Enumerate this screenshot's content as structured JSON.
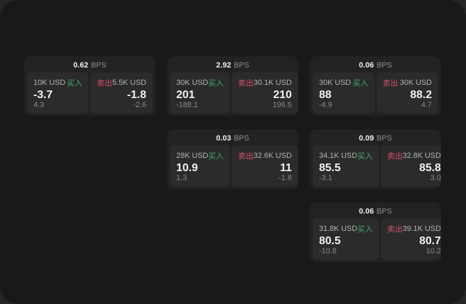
{
  "colors": {
    "page_bg": "#262626",
    "panel_bg": "#191919",
    "card_bg": "#222222",
    "pane_bg": "#2b2b2b",
    "buy_green": "#3fae6a",
    "sell_red": "#d8506c"
  },
  "labels": {
    "bps": "BPS",
    "buy": "买入",
    "sell": "卖出"
  },
  "cards": [
    {
      "col": 1,
      "row": 1,
      "bps": "0.62",
      "buy": {
        "size": "10K USD",
        "value": "-3.7",
        "delta": "4.3"
      },
      "sell": {
        "size": "5.5K USD",
        "value": "-1.8",
        "delta": "-2.6"
      }
    },
    {
      "col": 2,
      "row": 1,
      "bps": "2.92",
      "buy": {
        "size": "30K USD",
        "value": "201",
        "delta": "-188.1"
      },
      "sell": {
        "size": "30.1K USD",
        "value": "210",
        "delta": "196.5"
      }
    },
    {
      "col": 3,
      "row": 1,
      "bps": "0.06",
      "buy": {
        "size": "30K USD",
        "value": "88",
        "delta": "-4.9"
      },
      "sell": {
        "size": "30K USD",
        "value": "88.2",
        "delta": "4.7"
      }
    },
    {
      "col": 2,
      "row": 2,
      "bps": "0.03",
      "buy": {
        "size": "28K USD",
        "value": "10.9",
        "delta": "1.3"
      },
      "sell": {
        "size": "32.6K USD",
        "value": "11",
        "delta": "-1.8"
      }
    },
    {
      "col": 3,
      "row": 2,
      "bps": "0.09",
      "buy": {
        "size": "34.1K USD",
        "value": "85.5",
        "delta": "-3.1"
      },
      "sell": {
        "size": "32.8K USD",
        "value": "85.8",
        "delta": "3.0"
      }
    },
    {
      "col": 3,
      "row": 3,
      "bps": "0.06",
      "buy": {
        "size": "31.8K USD",
        "value": "80.5",
        "delta": "-10.8"
      },
      "sell": {
        "size": "39.1K USD",
        "value": "80.7",
        "delta": "10.2"
      }
    }
  ]
}
